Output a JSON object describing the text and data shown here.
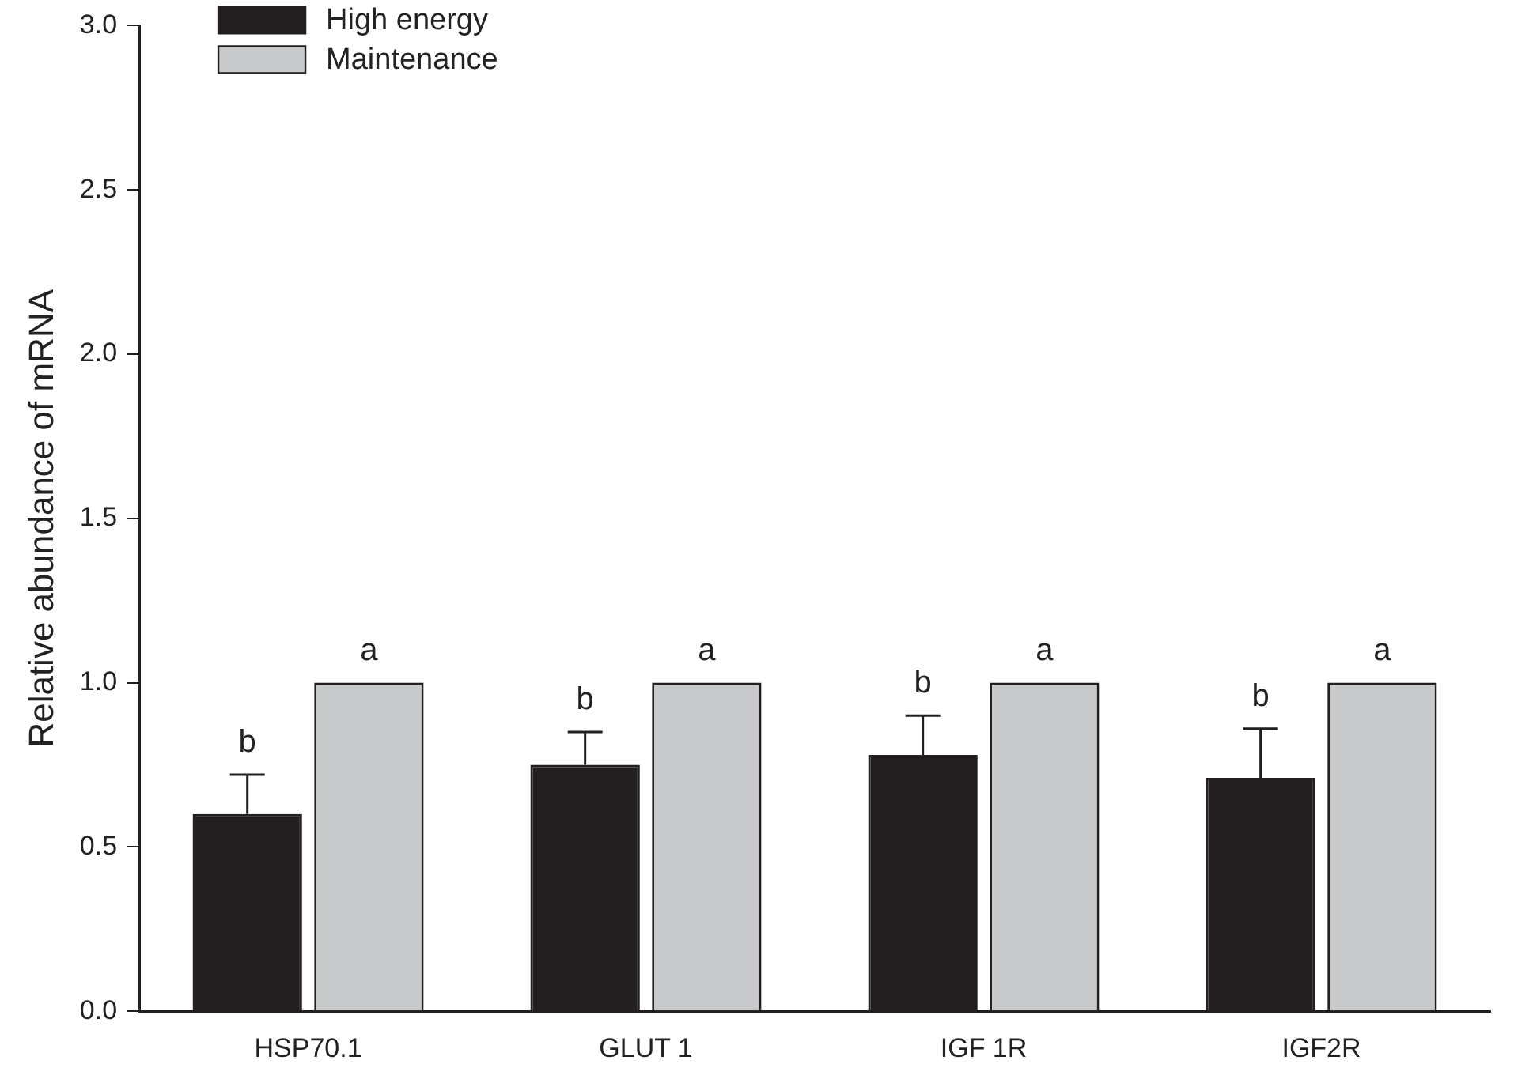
{
  "chart_data": {
    "type": "bar",
    "ylabel": "Relative abundance of mRNA",
    "categories": [
      "HSP70.1",
      "GLUT 1",
      "IGF 1R",
      "IGF2R"
    ],
    "series": [
      {
        "name": "High energy",
        "color": "#231f20",
        "values": [
          0.6,
          0.75,
          0.78,
          0.71
        ],
        "errors": [
          [
            0.6,
            0.72
          ],
          [
            0.75,
            0.85
          ],
          [
            0.78,
            0.9
          ],
          [
            0.71,
            0.86
          ]
        ],
        "value_labels": [
          "b",
          "b",
          "b",
          "b"
        ]
      },
      {
        "name": "Maintenance",
        "color": "#c8c9cb",
        "values": [
          1.0,
          1.0,
          1.0,
          1.0
        ],
        "value_labels": [
          "a",
          "a",
          "a",
          "a"
        ]
      }
    ],
    "ylim": [
      0,
      3.0
    ],
    "yticks": [
      {
        "value": 0,
        "label": "0.0"
      },
      0.5,
      {
        "value": 1,
        "label": "1.0"
      },
      1.5,
      {
        "value": 2,
        "label": "2.0"
      },
      2.5,
      {
        "value": 3,
        "label": "3.0"
      }
    ],
    "grid": false,
    "legend": "top left"
  }
}
